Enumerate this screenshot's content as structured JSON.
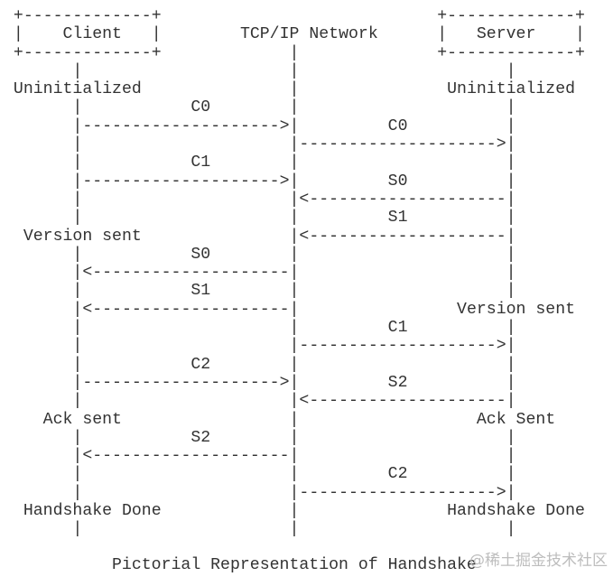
{
  "diagram": {
    "ascii_lines": [
      " +-------------+                            +-------------+",
      " |    Client   |        TCP/IP Network      |   Server    |",
      " +-------------+             |              +-------------+",
      "       |                     |                     |",
      " Uninitialized               |               Uninitialized",
      "       |           C0        |                     |",
      "       |-------------------->|         C0          |",
      "       |                     |-------------------->|",
      "       |           C1        |                     |",
      "       |-------------------->|         S0          |",
      "       |                     |<--------------------|",
      "       |                     |         S1          |",
      "  Version sent               |<--------------------|",
      "       |           S0        |                     |",
      "       |<--------------------|                     |",
      "       |           S1        |                     |",
      "       |<--------------------|                Version sent",
      "       |                     |         C1          |",
      "       |                     |-------------------->|",
      "       |           C2        |                     |",
      "       |-------------------->|         S2          |",
      "       |                     |<--------------------|",
      "    Ack sent                 |                  Ack Sent",
      "       |           S2        |                     |",
      "       |<--------------------|                     |",
      "       |                     |         C2          |",
      "       |                     |-------------------->|",
      "  Handshake Done             |               Handshake Done",
      "       |                     |                     |"
    ],
    "caption": "Pictorial Representation of Handshake",
    "watermark": "@稀土掘金技术社区",
    "actors": [
      {
        "name": "Client"
      },
      {
        "name": "TCP/IP Network"
      },
      {
        "name": "Server"
      }
    ],
    "client_states": [
      "Uninitialized",
      "Version sent",
      "Ack sent",
      "Handshake Done"
    ],
    "server_states": [
      "Uninitialized",
      "Version sent",
      "Ack Sent",
      "Handshake Done"
    ],
    "messages": [
      {
        "label": "C0",
        "from": "Client",
        "to": "Network"
      },
      {
        "label": "C0",
        "from": "Network",
        "to": "Server"
      },
      {
        "label": "C1",
        "from": "Client",
        "to": "Network"
      },
      {
        "label": "S0",
        "from": "Server",
        "to": "Network"
      },
      {
        "label": "S1",
        "from": "Server",
        "to": "Network"
      },
      {
        "label": "S0",
        "from": "Network",
        "to": "Client"
      },
      {
        "label": "S1",
        "from": "Network",
        "to": "Client"
      },
      {
        "label": "C1",
        "from": "Network",
        "to": "Server"
      },
      {
        "label": "C2",
        "from": "Client",
        "to": "Network"
      },
      {
        "label": "S2",
        "from": "Server",
        "to": "Network"
      },
      {
        "label": "S2",
        "from": "Network",
        "to": "Client"
      },
      {
        "label": "C2",
        "from": "Network",
        "to": "Server"
      }
    ],
    "colors": {
      "text": "#333333",
      "watermark": "#bdbdbd",
      "background": "#ffffff"
    }
  }
}
